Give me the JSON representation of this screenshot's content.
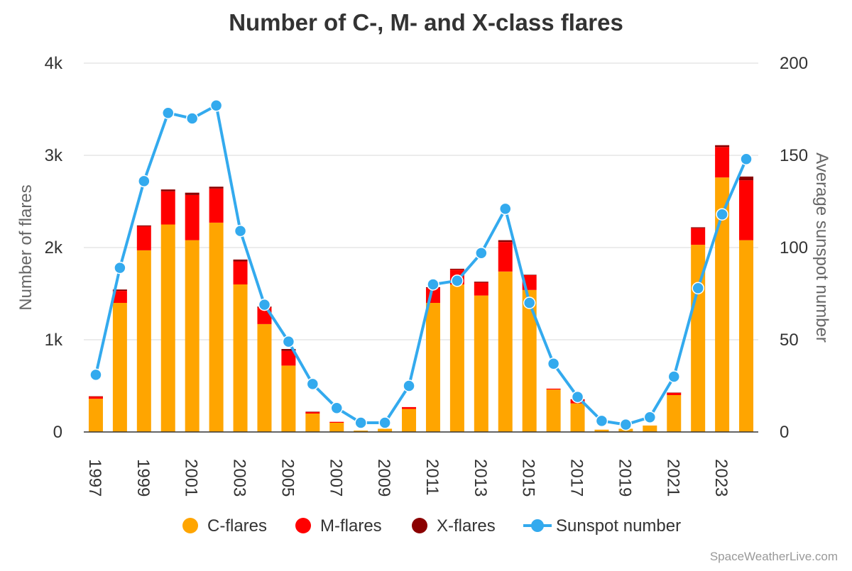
{
  "chart_data": {
    "type": "bar",
    "stacked": true,
    "title": "Number of C-, M- and X-class flares",
    "credit": "SpaceWeatherLive.com",
    "ylabel": "Number of flares",
    "y2label": "Average sunspot number",
    "ylim": [
      0,
      4000
    ],
    "y2lim": [
      0,
      200
    ],
    "yticks": [
      "0",
      "1k",
      "2k",
      "3k",
      "4k"
    ],
    "y2ticks": [
      "0",
      "50",
      "100",
      "150",
      "200"
    ],
    "grid": true,
    "legend_position": "bottom",
    "categories": [
      1997,
      1998,
      1999,
      2000,
      2001,
      2002,
      2003,
      2004,
      2005,
      2006,
      2007,
      2008,
      2009,
      2010,
      2011,
      2012,
      2013,
      2014,
      2015,
      2016,
      2017,
      2018,
      2019,
      2020,
      2021,
      2022,
      2023,
      2024
    ],
    "xtick_labels": [
      "1997",
      "",
      "1999",
      "",
      "2001",
      "",
      "2003",
      "",
      "2005",
      "",
      "2007",
      "",
      "2009",
      "",
      "2011",
      "",
      "2013",
      "",
      "2015",
      "",
      "2017",
      "",
      "2019",
      "",
      "2021",
      "",
      "2023",
      ""
    ],
    "series": [
      {
        "name": "C-flares",
        "type": "bar",
        "color": "#ffa500",
        "values": [
          360,
          1400,
          1970,
          2250,
          2080,
          2270,
          1600,
          1170,
          720,
          200,
          100,
          15,
          35,
          250,
          1400,
          1600,
          1480,
          1740,
          1540,
          460,
          310,
          25,
          35,
          70,
          400,
          2030,
          2760,
          2080
        ]
      },
      {
        "name": "M-flares",
        "type": "bar",
        "color": "#ff0000",
        "values": [
          25,
          130,
          260,
          360,
          490,
          370,
          250,
          180,
          160,
          15,
          10,
          0,
          0,
          20,
          160,
          160,
          140,
          320,
          160,
          10,
          40,
          0,
          0,
          0,
          25,
          180,
          330,
          650
        ]
      },
      {
        "name": "X-flares",
        "type": "bar",
        "color": "#8b0000",
        "values": [
          2,
          15,
          10,
          20,
          25,
          20,
          20,
          10,
          20,
          5,
          0,
          0,
          0,
          0,
          10,
          10,
          10,
          20,
          5,
          0,
          5,
          0,
          0,
          0,
          2,
          10,
          20,
          40
        ]
      },
      {
        "name": "Sunspot number",
        "type": "line",
        "color": "#33aaee",
        "values": [
          31,
          89,
          136,
          173,
          170,
          177,
          109,
          69,
          49,
          26,
          13,
          5,
          5,
          25,
          80,
          82,
          97,
          121,
          70,
          37,
          19,
          6,
          4,
          8,
          30,
          78,
          118,
          148
        ]
      }
    ]
  }
}
